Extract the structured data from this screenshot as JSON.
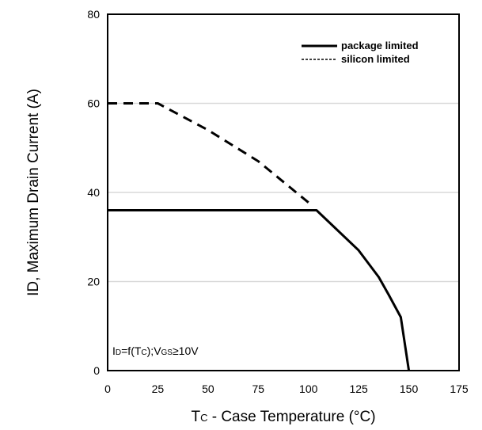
{
  "chart_data": {
    "type": "line",
    "xlabel": {
      "main": "T",
      "sub": "C",
      "rest": " - Case Temperature (°C)"
    },
    "ylabel": "ID, Maximum Drain Current (A)",
    "xlim": [
      0,
      175
    ],
    "ylim": [
      0,
      80
    ],
    "xticks": [
      0,
      25,
      50,
      75,
      100,
      125,
      150,
      175
    ],
    "yticks": [
      0,
      20,
      40,
      60,
      80
    ],
    "grid": "horizontal",
    "legend_position": "top-right",
    "annotation": {
      "p1": "I",
      "s1": "D",
      "p2": "=f(T",
      "s2": "C",
      "p3": ");V",
      "s3": "GS",
      "p4": "≥10V"
    },
    "series": [
      {
        "name": "package limited",
        "style": "solid",
        "points": [
          [
            0,
            36
          ],
          [
            104,
            36
          ],
          [
            125,
            27
          ],
          [
            135,
            21
          ],
          [
            140,
            17
          ],
          [
            146,
            12
          ],
          [
            150,
            0
          ]
        ]
      },
      {
        "name": "silicon limited",
        "style": "dashed",
        "points": [
          [
            0,
            60
          ],
          [
            25,
            60
          ],
          [
            50,
            54
          ],
          [
            75,
            47
          ],
          [
            102,
            37
          ]
        ]
      }
    ],
    "legend": {
      "solid_label": "package limited",
      "dashed_label": "silicon limited"
    }
  }
}
